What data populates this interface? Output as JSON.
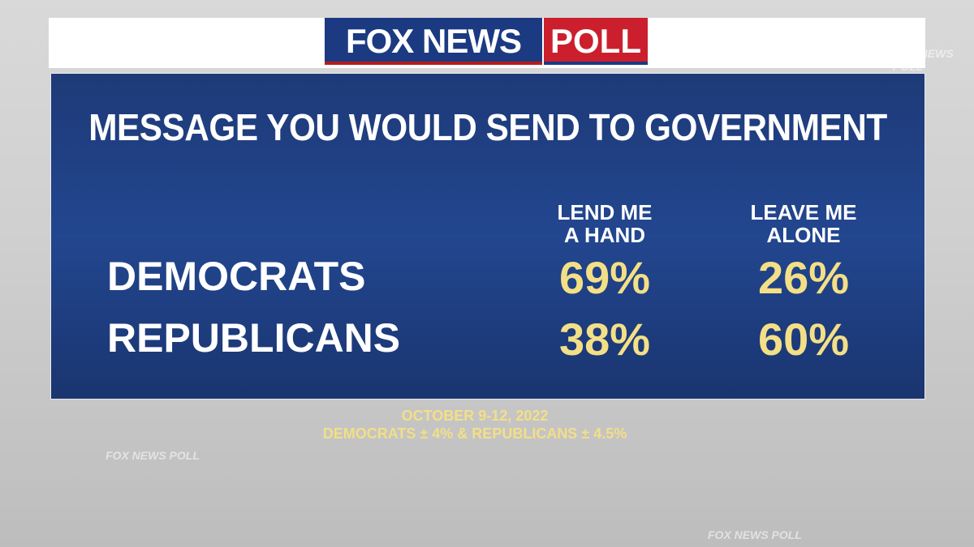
{
  "header": {
    "brand": "FOX NEWS",
    "label": "POLL"
  },
  "title": "MESSAGE YOU WOULD SEND TO GOVERNMENT",
  "table": {
    "columns": [
      [
        "LEND ME",
        "A HAND"
      ],
      [
        "LEAVE ME",
        "ALONE"
      ]
    ],
    "rows": [
      [
        "DEMOCRATS",
        "69%",
        "26%"
      ],
      [
        "REPUBLICANS",
        "38%",
        "60%"
      ]
    ]
  },
  "footer": {
    "date": "OCTOBER 9-12, 2022",
    "margin": "DEMOCRATS ± 4% & REPUBLICANS ± 4.5%"
  },
  "watermark": "FOX NEWS POLL"
}
